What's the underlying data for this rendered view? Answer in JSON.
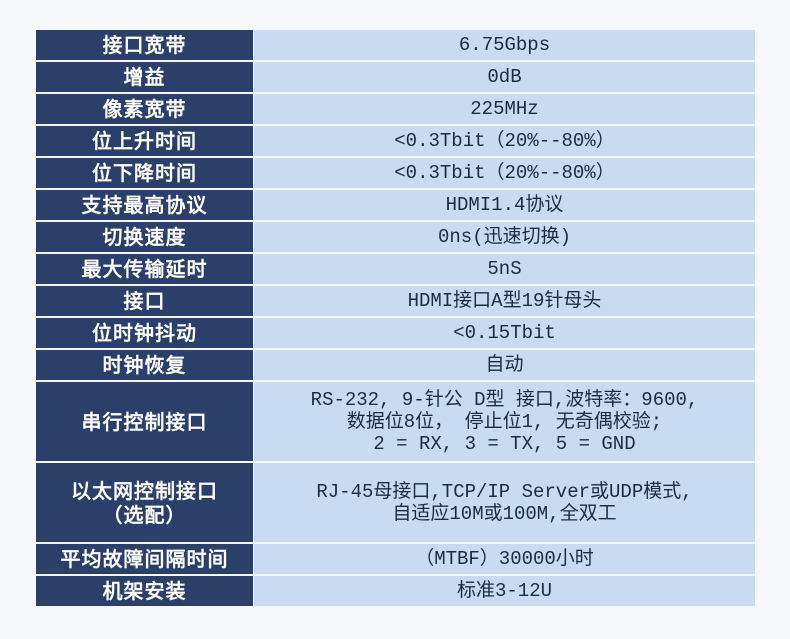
{
  "colors": {
    "label_bg": "#2c3f6a",
    "value_bg": "#c9dbf3",
    "page_bg": "#f7f8fc"
  },
  "rows": [
    {
      "label": "接口宽带",
      "value": "6.75Gbps"
    },
    {
      "label": "增益",
      "value": "0dB"
    },
    {
      "label": "像素宽带",
      "value": "225MHz"
    },
    {
      "label": "位上升时间",
      "value": "<0.3Tbit（20%--80%）"
    },
    {
      "label": "位下降时间",
      "value": "<0.3Tbit（20%--80%）"
    },
    {
      "label": "支持最高协议",
      "value": "HDMI1.4协议"
    },
    {
      "label": "切换速度",
      "value": "0ns(迅速切换)"
    },
    {
      "label": "最大传输延时",
      "value": "5nS"
    },
    {
      "label": "接口",
      "value": "HDMI接口A型19针母头"
    },
    {
      "label": "位时钟抖动",
      "value": "<0.15Tbit"
    },
    {
      "label": "时钟恢复",
      "value": "自动"
    },
    {
      "label": "串行控制接口",
      "value": "RS-232, 9-针公 D型 接口,波特率：9600,\n数据位8位， 停止位1, 无奇偶校验;\n2 = RX, 3 = TX, 5 = GND"
    },
    {
      "label": "以太网控制接口\n（选配）",
      "value": "RJ-45母接口,TCP/IP Server或UDP模式,\n自适应10M或100M,全双工"
    },
    {
      "label": "平均故障间隔时间",
      "value": "（MTBF）30000小时"
    },
    {
      "label": "机架安装",
      "value": "标准3-12U"
    }
  ]
}
